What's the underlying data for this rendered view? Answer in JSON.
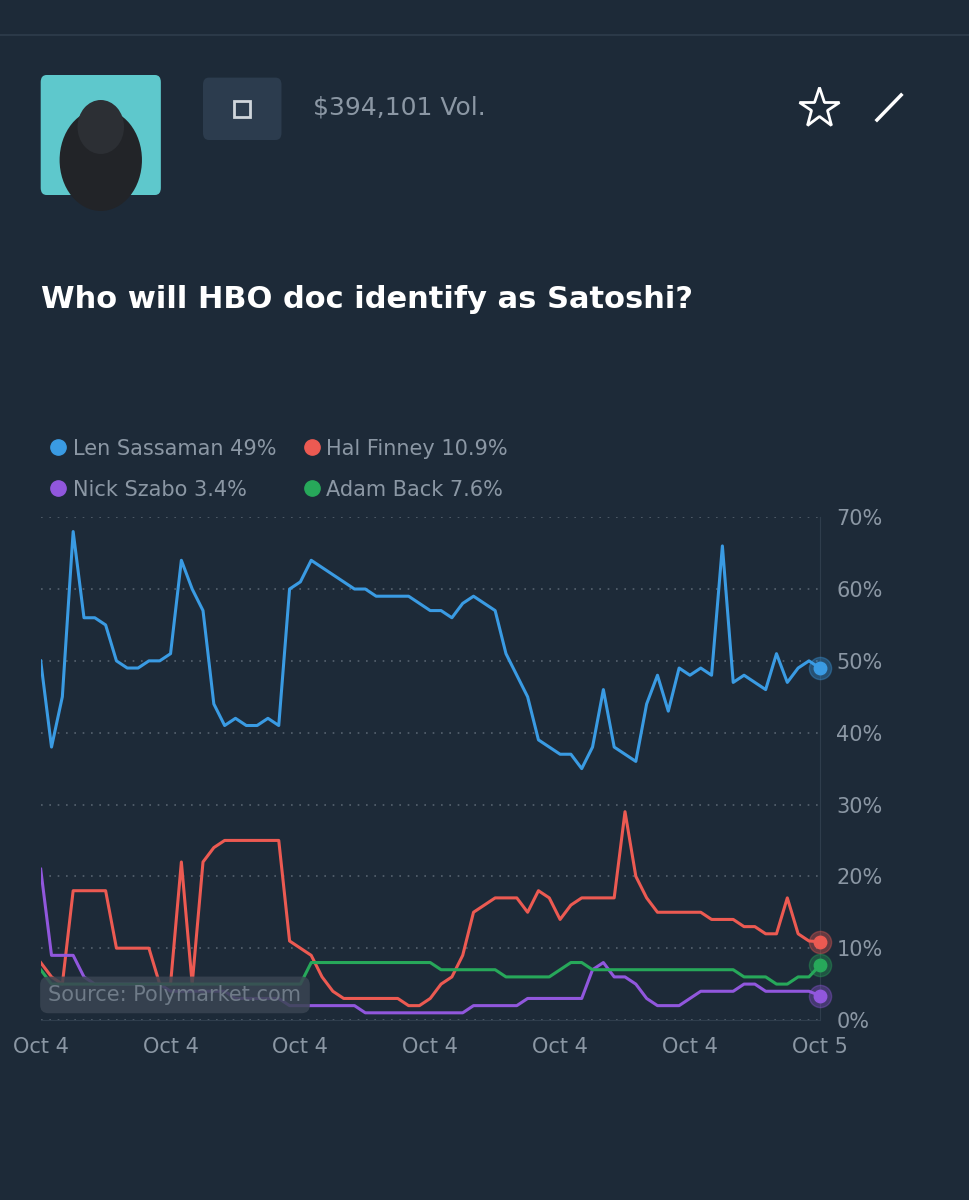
{
  "chart_data": {
    "type": "line",
    "title": "Who will HBO doc identify as Satoshi?",
    "annotations": [
      "$394,101 Vol.",
      "Source: Polymarket.com"
    ],
    "categories": [
      "Oct 4",
      null,
      null,
      null,
      null,
      null,
      null,
      null,
      null,
      null,
      null,
      null,
      "Oct 4",
      null,
      null,
      null,
      null,
      null,
      null,
      null,
      null,
      null,
      null,
      null,
      "Oct 4",
      null,
      null,
      null,
      null,
      null,
      null,
      null,
      null,
      null,
      null,
      null,
      "Oct 4",
      null,
      null,
      null,
      null,
      null,
      null,
      null,
      null,
      null,
      null,
      null,
      "Oct 4",
      null,
      null,
      null,
      null,
      null,
      null,
      null,
      null,
      null,
      null,
      null,
      "Oct 4",
      null,
      null,
      null,
      null,
      null,
      null,
      null,
      null,
      null,
      null,
      null,
      "Oct 5"
    ],
    "series": [
      {
        "name": "Len Sassaman 49%",
        "color": "#3a9be3",
        "values": [
          50,
          38,
          45,
          68,
          56,
          56,
          55,
          50,
          49,
          49,
          50,
          50,
          51,
          64,
          60,
          57,
          44,
          41,
          42,
          41,
          41,
          42,
          41,
          60,
          61,
          64,
          63,
          62,
          61,
          60,
          60,
          59,
          59,
          59,
          59,
          58,
          57,
          57,
          56,
          58,
          59,
          58,
          57,
          51,
          48,
          45,
          39,
          38,
          37,
          37,
          35,
          38,
          46,
          38,
          37,
          36,
          44,
          48,
          43,
          49,
          48,
          49,
          48,
          66,
          47,
          48,
          47,
          46,
          51,
          47,
          49,
          50,
          49
        ]
      },
      {
        "name": "Hal Finney 10.9%",
        "color": "#ec5a52",
        "values": [
          8,
          6,
          5,
          18,
          18,
          18,
          18,
          10,
          10,
          10,
          10,
          5,
          5,
          22,
          5,
          22,
          24,
          25,
          25,
          25,
          25,
          25,
          25,
          11,
          10,
          9,
          6,
          4,
          3,
          3,
          3,
          3,
          3,
          3,
          2,
          2,
          3,
          5,
          6,
          9,
          15,
          16,
          17,
          17,
          17,
          15,
          18,
          17,
          14,
          16,
          17,
          17,
          17,
          17,
          29,
          20,
          17,
          15,
          15,
          15,
          15,
          15,
          14,
          14,
          14,
          13,
          13,
          12,
          12,
          17,
          12,
          11,
          10.9
        ]
      },
      {
        "name": "Nick Szabo 3.4%",
        "color": "#9157dd",
        "values": [
          21,
          9,
          9,
          9,
          6,
          5,
          5,
          5,
          5,
          5,
          5,
          5,
          4,
          4,
          4,
          4,
          4,
          4,
          3,
          3,
          3,
          3,
          3,
          2,
          2,
          2,
          2,
          2,
          2,
          2,
          1,
          1,
          1,
          1,
          1,
          1,
          1,
          1,
          1,
          1,
          2,
          2,
          2,
          2,
          2,
          3,
          3,
          3,
          3,
          3,
          3,
          7,
          8,
          6,
          6,
          5,
          3,
          2,
          2,
          2,
          3,
          4,
          4,
          4,
          4,
          5,
          5,
          4,
          4,
          4,
          4,
          4,
          3.4
        ]
      },
      {
        "name": "Adam Back 7.6%",
        "color": "#27a85a",
        "values": [
          7,
          5,
          5,
          5,
          5,
          5,
          5,
          5,
          5,
          5,
          5,
          5,
          5,
          5,
          5,
          5,
          5,
          5,
          5,
          5,
          5,
          5,
          5,
          5,
          5,
          8,
          8,
          8,
          8,
          8,
          8,
          8,
          8,
          8,
          8,
          8,
          8,
          7,
          7,
          7,
          7,
          7,
          7,
          6,
          6,
          6,
          6,
          6,
          7,
          8,
          8,
          7,
          7,
          7,
          7,
          7,
          7,
          7,
          7,
          7,
          7,
          7,
          7,
          7,
          7,
          6,
          6,
          6,
          5,
          5,
          6,
          6,
          7.6
        ]
      }
    ],
    "ylim": [
      0,
      70
    ],
    "yticks": [
      {
        "value": 0,
        "label": "0%"
      },
      {
        "value": 10,
        "label": "10%"
      },
      {
        "value": 20,
        "label": "20%"
      },
      {
        "value": 30,
        "label": "30%"
      },
      {
        "value": 40,
        "label": "40%"
      },
      {
        "value": 50,
        "label": "50%"
      },
      {
        "value": 60,
        "label": "60%"
      },
      {
        "value": 70,
        "label": "70%"
      }
    ],
    "grid": true,
    "legend": "upper left",
    "line_style": "solid"
  }
}
